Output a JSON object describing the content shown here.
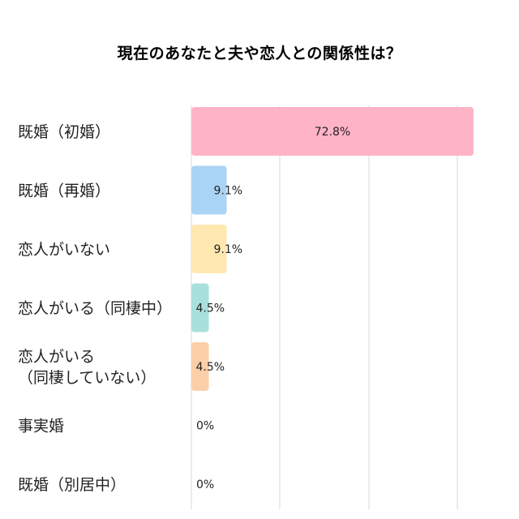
{
  "chart_data": {
    "type": "bar",
    "orientation": "horizontal",
    "title": "現在のあなたと夫や恋人との関係性は？",
    "unit": "%",
    "xlim": [
      0,
      75
    ],
    "grid": true,
    "categories": [
      "既婚（初婚）",
      "既婚（再婚）",
      "恋人がいない",
      "恋人がいる（同棲中）",
      "恋人がいる（同棲していない）",
      "事実婚",
      "既婚（別居中）"
    ],
    "category_lines": [
      [
        "既婚（初婚）"
      ],
      [
        "既婚（再婚）"
      ],
      [
        "恋人がいない"
      ],
      [
        "恋人がいる（同棲中）"
      ],
      [
        "恋人がいる",
        "（同棲していない）"
      ],
      [
        "事実婚"
      ],
      [
        "既婚（別居中）"
      ]
    ],
    "values": [
      72.8,
      9.1,
      9.1,
      4.5,
      4.5,
      0,
      0
    ],
    "value_labels": [
      "72.8%",
      "9.1%",
      "9.1%",
      "4.5%",
      "4.5%",
      "0%",
      "0%"
    ],
    "colors": [
      "#ffb3c6",
      "#a9d4f5",
      "#ffe8b0",
      "#a8e0dc",
      "#fbd0a8",
      "#cccccc",
      "#cccccc"
    ]
  }
}
